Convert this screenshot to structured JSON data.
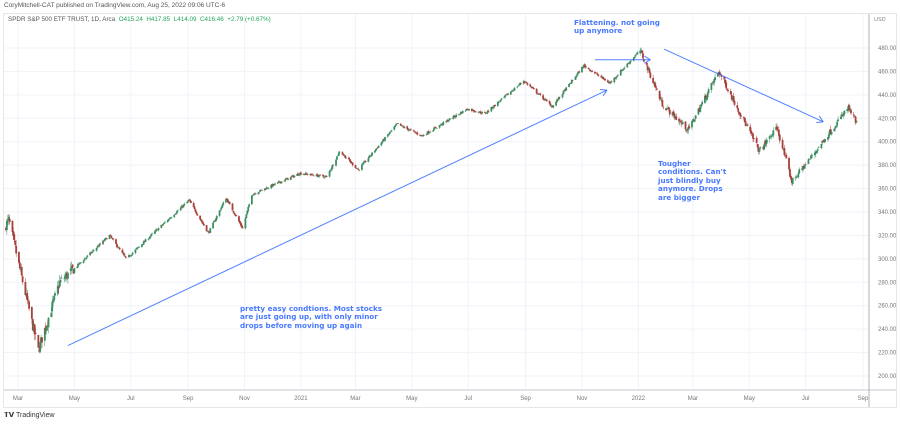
{
  "publisher_line": "CoryMitchell-CAT published on TradingView.com, Aug 25, 2022 09:06 UTC-6",
  "legend": {
    "symbol": "SPDR S&P 500 ETF TRUST, 1D, Arca",
    "open": "O415.24",
    "high": "H417.85",
    "low": "L414.09",
    "close": "C416.46",
    "change": "+2.79 (+0.67%)"
  },
  "annotations": {
    "flattening": "Flattening. not going up anymore",
    "tougher": "Tougher conditions. Can't just blindly buy anymore. Drops are bigger",
    "easy": "pretty easy condtions. Most stocks are just going up, with only minor drops before moving up again"
  },
  "footer": {
    "logo": "TradingView"
  },
  "colors": {
    "up": "#3b8f63",
    "down": "#a8403a",
    "annotation": "#2962ff",
    "grid": "#f0f3fa"
  },
  "chart_data": {
    "type": "candlestick",
    "currency_label": "USD",
    "y_ticks": [
      "480.00",
      "460.00",
      "440.00",
      "420.00",
      "400.00",
      "380.00",
      "360.00",
      "340.00",
      "320.00",
      "300.00",
      "280.00",
      "260.00",
      "240.00",
      "220.00",
      "200.00"
    ],
    "ylim": [
      190,
      485
    ],
    "x_ticks": [
      {
        "label": "Mar",
        "date": "2020-03-01"
      },
      {
        "label": "May",
        "date": "2020-05-01"
      },
      {
        "label": "Jul",
        "date": "2020-07-01"
      },
      {
        "label": "Sep",
        "date": "2020-09-01"
      },
      {
        "label": "Nov",
        "date": "2020-11-01"
      },
      {
        "label": "2021",
        "date": "2021-01-01"
      },
      {
        "label": "Mar",
        "date": "2021-03-01"
      },
      {
        "label": "May",
        "date": "2021-05-01"
      },
      {
        "label": "Jul",
        "date": "2021-07-01"
      },
      {
        "label": "Sep",
        "date": "2021-09-01"
      },
      {
        "label": "Nov",
        "date": "2021-11-01"
      },
      {
        "label": "2022",
        "date": "2022-01-01"
      },
      {
        "label": "Mar",
        "date": "2022-03-01"
      },
      {
        "label": "May",
        "date": "2022-05-01"
      },
      {
        "label": "Jul",
        "date": "2022-07-01"
      },
      {
        "label": "Sep",
        "date": "2022-09-01"
      }
    ],
    "grid": true,
    "approx_closes": [
      [
        "2020-02-14",
        325
      ],
      [
        "2020-02-20",
        333
      ],
      [
        "2020-03-23",
        222
      ],
      [
        "2020-04-15",
        280
      ],
      [
        "2020-06-08",
        320
      ],
      [
        "2020-06-26",
        300
      ],
      [
        "2020-07-31",
        326
      ],
      [
        "2020-09-02",
        350
      ],
      [
        "2020-09-23",
        322
      ],
      [
        "2020-10-12",
        352
      ],
      [
        "2020-10-30",
        326
      ],
      [
        "2020-11-09",
        355
      ],
      [
        "2020-12-31",
        373
      ],
      [
        "2021-01-29",
        370
      ],
      [
        "2021-02-12",
        392
      ],
      [
        "2021-03-04",
        376
      ],
      [
        "2021-04-15",
        415
      ],
      [
        "2021-05-12",
        405
      ],
      [
        "2021-06-30",
        428
      ],
      [
        "2021-07-19",
        424
      ],
      [
        "2021-08-30",
        452
      ],
      [
        "2021-09-30",
        430
      ],
      [
        "2021-11-03",
        465
      ],
      [
        "2021-12-01",
        450
      ],
      [
        "2022-01-03",
        478
      ],
      [
        "2022-01-27",
        432
      ],
      [
        "2022-02-24",
        410
      ],
      [
        "2022-03-29",
        460
      ],
      [
        "2022-05-12",
        392
      ],
      [
        "2022-05-31",
        412
      ],
      [
        "2022-06-16",
        366
      ],
      [
        "2022-07-08",
        388
      ],
      [
        "2022-08-16",
        429
      ],
      [
        "2022-08-25",
        416
      ]
    ],
    "trendlines": [
      {
        "from": [
          "2020-04-24",
          226
        ],
        "to": [
          "2021-11-28",
          444
        ],
        "arrow": true
      },
      {
        "from": [
          "2021-11-15",
          470
        ],
        "to": [
          "2022-01-14",
          470
        ],
        "arrow": true
      },
      {
        "from": [
          "2022-01-29",
          479
        ],
        "to": [
          "2022-07-20",
          417
        ],
        "arrow": true
      }
    ]
  }
}
